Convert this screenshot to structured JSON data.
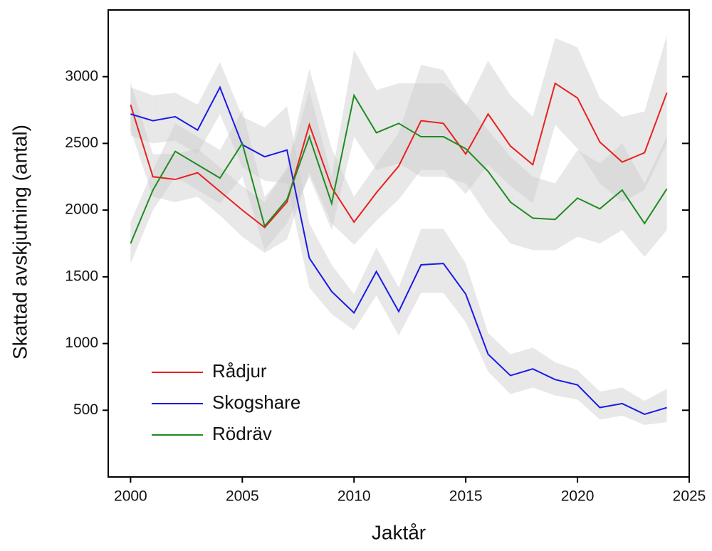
{
  "chart_data": {
    "type": "line",
    "x_label": "Jaktår",
    "y_label": "Skattad avskjutning (antal)",
    "x": [
      2000,
      2001,
      2002,
      2003,
      2004,
      2005,
      2006,
      2007,
      2008,
      2009,
      2010,
      2011,
      2012,
      2013,
      2014,
      2015,
      2016,
      2017,
      2018,
      2019,
      2020,
      2021,
      2022,
      2023,
      2024
    ],
    "series": [
      {
        "name": "Rådjur",
        "color": "#e8211e",
        "values": [
          2790,
          2250,
          2230,
          2280,
          2140,
          2000,
          1870,
          2060,
          2640,
          2170,
          1910,
          2130,
          2330,
          2670,
          2650,
          2420,
          2720,
          2480,
          2340,
          2950,
          2840,
          2510,
          2360,
          2430,
          2880
        ],
        "lower": [
          2600,
          2100,
          2060,
          2100,
          1960,
          1800,
          1680,
          1780,
          2280,
          1900,
          1740,
          1920,
          2080,
          2300,
          2300,
          2120,
          2340,
          2180,
          2050,
          2640,
          2460,
          2200,
          2060,
          2150,
          2500
        ],
        "upper": [
          2960,
          2420,
          2420,
          2460,
          2320,
          2180,
          2060,
          2320,
          3060,
          2460,
          2100,
          2340,
          2580,
          3090,
          3050,
          2780,
          3120,
          2860,
          2700,
          3290,
          3220,
          2840,
          2700,
          2740,
          3310
        ]
      },
      {
        "name": "Skogshare",
        "color": "#1a1ae6",
        "values": [
          2720,
          2670,
          2700,
          2600,
          2920,
          2490,
          2400,
          2450,
          1640,
          1390,
          1230,
          1540,
          1240,
          1590,
          1600,
          1370,
          920,
          760,
          810,
          730,
          690,
          520,
          550,
          470,
          520
        ],
        "lower": [
          2560,
          2500,
          2520,
          2420,
          2720,
          2320,
          2220,
          2200,
          1420,
          1220,
          1100,
          1360,
          1060,
          1380,
          1380,
          1160,
          790,
          620,
          670,
          610,
          580,
          430,
          460,
          390,
          410
        ],
        "upper": [
          2920,
          2860,
          2880,
          2790,
          3110,
          2700,
          2620,
          2780,
          1900,
          1590,
          1370,
          1720,
          1420,
          1860,
          1860,
          1600,
          1080,
          920,
          970,
          860,
          800,
          640,
          670,
          570,
          660
        ]
      },
      {
        "name": "Rödräv",
        "color": "#1e8c1e",
        "values": [
          1750,
          2150,
          2440,
          2340,
          2240,
          2500,
          1880,
          2080,
          2550,
          2050,
          2860,
          2580,
          2650,
          2550,
          2550,
          2460,
          2290,
          2060,
          1940,
          1930,
          2090,
          2010,
          2150,
          1900,
          2160
        ],
        "lower": [
          1600,
          2000,
          2250,
          2150,
          2050,
          2250,
          1700,
          1900,
          2250,
          1850,
          2550,
          2300,
          2350,
          2250,
          2250,
          2200,
          1950,
          1750,
          1700,
          1700,
          1800,
          1750,
          1850,
          1650,
          1850
        ],
        "upper": [
          1910,
          2300,
          2650,
          2550,
          2450,
          2750,
          2100,
          2300,
          2900,
          2250,
          3200,
          2900,
          2950,
          2950,
          2950,
          2800,
          2600,
          2400,
          2250,
          2200,
          2450,
          2350,
          2500,
          2200,
          2550
        ]
      }
    ],
    "xlim": [
      1999,
      2025
    ],
    "xticks": [
      2000,
      2005,
      2010,
      2015,
      2020,
      2025
    ],
    "ylim": [
      0,
      3500
    ],
    "yticks": [
      500,
      1000,
      1500,
      2000,
      2500,
      3000
    ],
    "legend": "lower left",
    "band_color": "#cccccc"
  }
}
